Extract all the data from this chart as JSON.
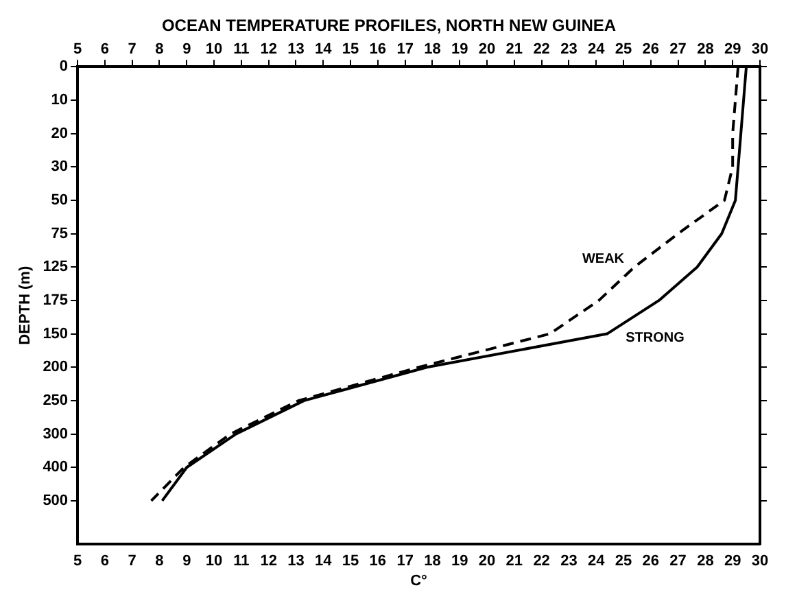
{
  "chart_data": {
    "type": "line",
    "title": "OCEAN TEMPERATURE PROFILES, NORTH NEW GUINEA",
    "xlabel": "C°",
    "ylabel": "DEPTH (m)",
    "orientation": "horizontal",
    "categories": [
      "0",
      "10",
      "20",
      "30",
      "50",
      "75",
      "125",
      "175",
      "150",
      "200",
      "250",
      "300",
      "400",
      "500"
    ],
    "xlim": [
      5,
      30
    ],
    "xticks": [
      5,
      6,
      7,
      8,
      9,
      10,
      11,
      12,
      13,
      14,
      15,
      16,
      17,
      18,
      19,
      20,
      21,
      22,
      23,
      24,
      25,
      26,
      27,
      28,
      29,
      30
    ],
    "x2lim": [
      5,
      30
    ],
    "x2ticks": [
      5,
      6,
      7,
      8,
      9,
      10,
      11,
      12,
      13,
      14,
      15,
      16,
      17,
      18,
      19,
      20,
      21,
      22,
      23,
      24,
      25,
      26,
      27,
      28,
      29,
      30
    ],
    "series": [
      {
        "name": "WEAK",
        "color": "#000000",
        "line_style": "dashed",
        "values": [
          29.2,
          29.1,
          29.0,
          29.0,
          28.7,
          27.0,
          25.4,
          24.1,
          22.3,
          17.5,
          13.1,
          10.6,
          8.9,
          7.7
        ]
      },
      {
        "name": "STRONG",
        "color": "#000000",
        "line_style": "solid",
        "values": [
          29.5,
          29.4,
          29.3,
          29.2,
          29.1,
          28.6,
          27.7,
          26.3,
          24.4,
          17.8,
          13.3,
          10.8,
          9.0,
          8.1
        ]
      }
    ],
    "marker": "none",
    "grid": false,
    "legend": false
  }
}
